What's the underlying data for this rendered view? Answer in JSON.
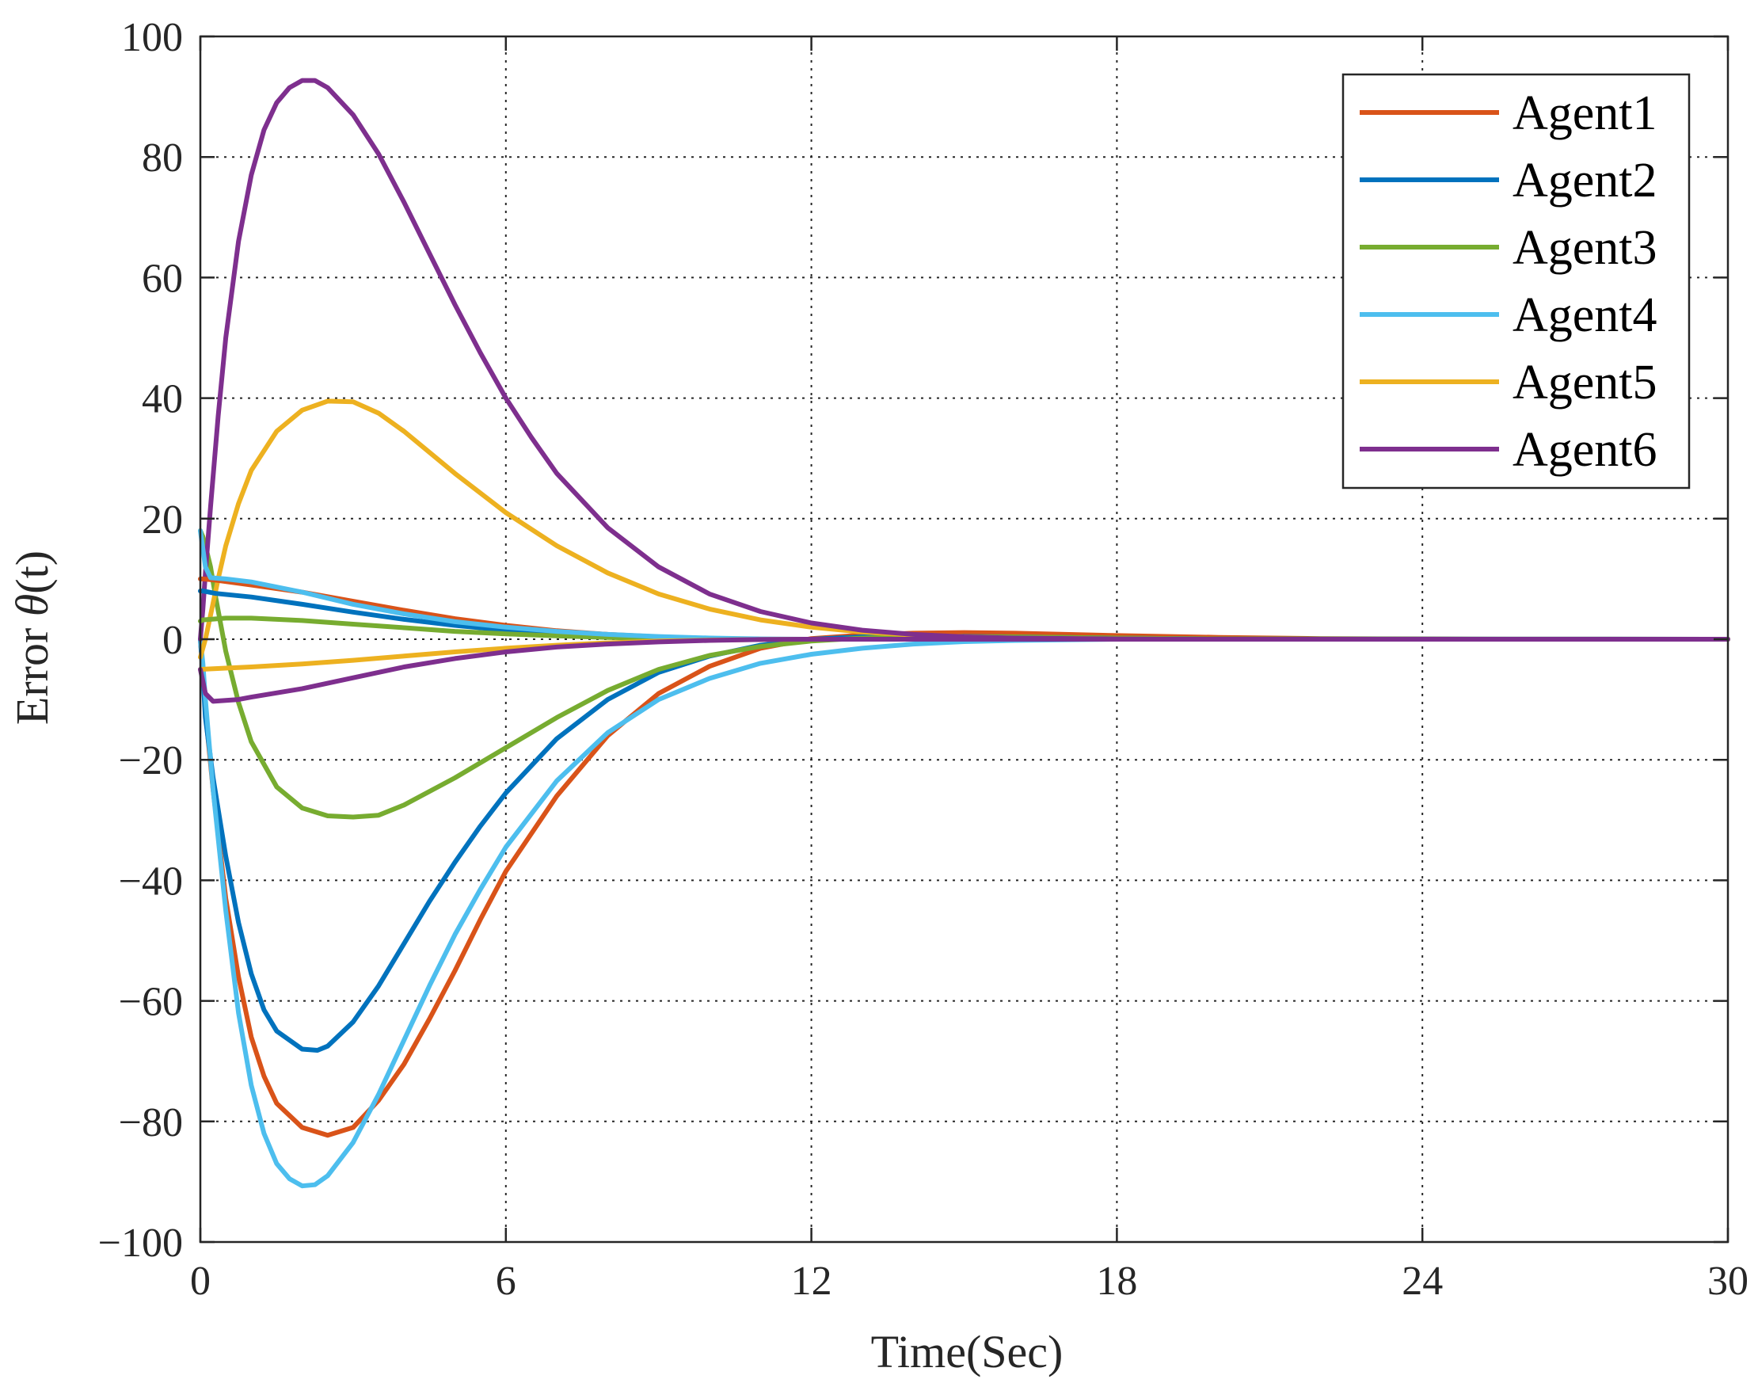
{
  "chart_data": {
    "type": "line",
    "title": "",
    "xlabel": "Time(Sec)",
    "ylabel_prefix": "Error ",
    "ylabel_symbol": "θ",
    "ylabel_suffix": "(t)",
    "xlim": [
      0,
      30
    ],
    "ylim": [
      -100,
      100
    ],
    "grid": true,
    "legend_position": "top-right",
    "xticks": [
      0,
      6,
      12,
      18,
      24,
      30
    ],
    "xtick_labels": [
      "0",
      "6",
      "12",
      "18",
      "24",
      "30"
    ],
    "yticks": [
      100,
      80,
      60,
      40,
      20,
      0,
      -20,
      -40,
      -60,
      -80,
      -100
    ],
    "ytick_labels": [
      "100",
      "80",
      "60",
      "40",
      "20",
      "0",
      "−20",
      "−40",
      "−60",
      "−80",
      "−100"
    ],
    "series": [
      {
        "name": "Agent1",
        "color": "#D95319",
        "points": [
          [
            0,
            0
          ],
          [
            0.05,
            -5
          ],
          [
            0.1,
            -12
          ],
          [
            0.25,
            -25
          ],
          [
            0.5,
            -43
          ],
          [
            0.75,
            -56
          ],
          [
            1.0,
            -66
          ],
          [
            1.25,
            -72.5
          ],
          [
            1.5,
            -77
          ],
          [
            2.0,
            -81
          ],
          [
            2.5,
            -82.3
          ],
          [
            3.0,
            -81
          ],
          [
            3.5,
            -76.5
          ],
          [
            4.0,
            -70.5
          ],
          [
            4.5,
            -63
          ],
          [
            5.0,
            -55
          ],
          [
            5.5,
            -46.5
          ],
          [
            6.0,
            -38.5
          ],
          [
            7.0,
            -26
          ],
          [
            8.0,
            -16
          ],
          [
            9.0,
            -9
          ],
          [
            10.0,
            -4.5
          ],
          [
            11.0,
            -1.5
          ],
          [
            12.0,
            0.1
          ],
          [
            13.0,
            0.7
          ],
          [
            14.0,
            1.0
          ],
          [
            15.0,
            1.1
          ],
          [
            16.0,
            1.0
          ],
          [
            18.0,
            0.6
          ],
          [
            20.0,
            0.3
          ],
          [
            22.0,
            0.1
          ],
          [
            25.0,
            0
          ],
          [
            30.0,
            0
          ]
        ]
      },
      {
        "name": "Agent2",
        "color": "#0072BD",
        "points": [
          [
            0,
            0
          ],
          [
            0.05,
            -6
          ],
          [
            0.1,
            -13
          ],
          [
            0.25,
            -23
          ],
          [
            0.5,
            -36
          ],
          [
            0.75,
            -47
          ],
          [
            1.0,
            -55.5
          ],
          [
            1.25,
            -61.5
          ],
          [
            1.5,
            -65
          ],
          [
            2.0,
            -68
          ],
          [
            2.3,
            -68.2
          ],
          [
            2.5,
            -67.5
          ],
          [
            3.0,
            -63.5
          ],
          [
            3.5,
            -57.5
          ],
          [
            4.0,
            -50.5
          ],
          [
            4.5,
            -43.5
          ],
          [
            5.0,
            -37
          ],
          [
            5.5,
            -31
          ],
          [
            6.0,
            -25.5
          ],
          [
            7.0,
            -16.5
          ],
          [
            8.0,
            -10
          ],
          [
            9.0,
            -5.5
          ],
          [
            10.0,
            -2.8
          ],
          [
            11.0,
            -1.0
          ],
          [
            12.0,
            0
          ],
          [
            13.0,
            0.4
          ],
          [
            14.0,
            0.5
          ],
          [
            16.0,
            0.4
          ],
          [
            18.0,
            0.2
          ],
          [
            20.0,
            0.05
          ],
          [
            30.0,
            0
          ]
        ]
      },
      {
        "name": "Agent3",
        "color": "#77AC30",
        "points": [
          [
            0,
            18
          ],
          [
            0.05,
            17
          ],
          [
            0.1,
            15.5
          ],
          [
            0.2,
            12
          ],
          [
            0.3,
            7
          ],
          [
            0.5,
            -2
          ],
          [
            0.75,
            -10.5
          ],
          [
            1.0,
            -17
          ],
          [
            1.5,
            -24.5
          ],
          [
            2.0,
            -28
          ],
          [
            2.5,
            -29.3
          ],
          [
            3.0,
            -29.5
          ],
          [
            3.5,
            -29.2
          ],
          [
            4.0,
            -27.5
          ],
          [
            5.0,
            -23
          ],
          [
            6.0,
            -18
          ],
          [
            7.0,
            -13
          ],
          [
            8.0,
            -8.5
          ],
          [
            9.0,
            -5
          ],
          [
            10.0,
            -2.7
          ],
          [
            11.0,
            -1.2
          ],
          [
            12.0,
            -0.3
          ],
          [
            13.0,
            0.2
          ],
          [
            14.0,
            0.4
          ],
          [
            16.0,
            0.4
          ],
          [
            18.0,
            0.2
          ],
          [
            20.0,
            0.05
          ],
          [
            30.0,
            0
          ]
        ]
      },
      {
        "name": "Agent4",
        "color": "#4DBEEE",
        "points": [
          [
            0,
            0
          ],
          [
            0.05,
            -4
          ],
          [
            0.1,
            -10
          ],
          [
            0.25,
            -25
          ],
          [
            0.5,
            -45
          ],
          [
            0.75,
            -62
          ],
          [
            1.0,
            -74
          ],
          [
            1.25,
            -82
          ],
          [
            1.5,
            -87
          ],
          [
            1.75,
            -89.5
          ],
          [
            2.0,
            -90.7
          ],
          [
            2.25,
            -90.5
          ],
          [
            2.5,
            -89
          ],
          [
            3.0,
            -83.5
          ],
          [
            3.5,
            -75.5
          ],
          [
            4.0,
            -66.5
          ],
          [
            4.5,
            -57.5
          ],
          [
            5.0,
            -49
          ],
          [
            5.5,
            -41.5
          ],
          [
            6.0,
            -34.5
          ],
          [
            7.0,
            -23.5
          ],
          [
            8.0,
            -15.5
          ],
          [
            9.0,
            -10
          ],
          [
            10.0,
            -6.5
          ],
          [
            11.0,
            -4
          ],
          [
            12.0,
            -2.5
          ],
          [
            13.0,
            -1.5
          ],
          [
            14.0,
            -0.8
          ],
          [
            15.0,
            -0.4
          ],
          [
            16.0,
            -0.2
          ],
          [
            18.0,
            0
          ],
          [
            30.0,
            0
          ]
        ]
      },
      {
        "name": "Agent5",
        "color": "#EDB120",
        "points": [
          [
            0,
            -3
          ],
          [
            0.1,
            0
          ],
          [
            0.2,
            4
          ],
          [
            0.35,
            10
          ],
          [
            0.5,
            15.5
          ],
          [
            0.75,
            22.5
          ],
          [
            1.0,
            28
          ],
          [
            1.5,
            34.5
          ],
          [
            2.0,
            38
          ],
          [
            2.5,
            39.5
          ],
          [
            3.0,
            39.4
          ],
          [
            3.5,
            37.5
          ],
          [
            4.0,
            34.5
          ],
          [
            4.5,
            31
          ],
          [
            5.0,
            27.5
          ],
          [
            6.0,
            21
          ],
          [
            7.0,
            15.5
          ],
          [
            8.0,
            11
          ],
          [
            9.0,
            7.5
          ],
          [
            10.0,
            5
          ],
          [
            11.0,
            3.2
          ],
          [
            12.0,
            2
          ],
          [
            13.0,
            1.2
          ],
          [
            14.0,
            0.7
          ],
          [
            15.0,
            0.4
          ],
          [
            16.0,
            0.2
          ],
          [
            18.0,
            0.05
          ],
          [
            20.0,
            0
          ],
          [
            30.0,
            0
          ]
        ]
      },
      {
        "name": "Agent6",
        "color": "#7E2F8E",
        "points": [
          [
            0,
            0
          ],
          [
            0.05,
            5
          ],
          [
            0.1,
            11
          ],
          [
            0.2,
            22
          ],
          [
            0.35,
            37
          ],
          [
            0.5,
            50
          ],
          [
            0.75,
            66
          ],
          [
            1.0,
            77
          ],
          [
            1.25,
            84.5
          ],
          [
            1.5,
            89
          ],
          [
            1.75,
            91.5
          ],
          [
            2.0,
            92.7
          ],
          [
            2.25,
            92.7
          ],
          [
            2.5,
            91.5
          ],
          [
            3.0,
            87
          ],
          [
            3.5,
            80.5
          ],
          [
            4.0,
            72.5
          ],
          [
            4.5,
            64
          ],
          [
            5.0,
            55.5
          ],
          [
            5.5,
            47.5
          ],
          [
            6.0,
            40
          ],
          [
            6.5,
            33.5
          ],
          [
            7.0,
            27.5
          ],
          [
            8.0,
            18.5
          ],
          [
            9.0,
            12
          ],
          [
            10.0,
            7.5
          ],
          [
            11.0,
            4.6
          ],
          [
            12.0,
            2.7
          ],
          [
            13.0,
            1.5
          ],
          [
            14.0,
            0.8
          ],
          [
            15.0,
            0.4
          ],
          [
            16.0,
            0.2
          ],
          [
            18.0,
            0.05
          ],
          [
            20.0,
            0
          ],
          [
            30.0,
            0
          ]
        ]
      },
      {
        "name": "Agent1-tail",
        "color": "#D95319",
        "legend": false,
        "points": [
          [
            0,
            10
          ],
          [
            0.05,
            10
          ],
          [
            0.3,
            9.8
          ],
          [
            1.0,
            9
          ],
          [
            2.0,
            7.8
          ],
          [
            3.0,
            6.3
          ],
          [
            4.0,
            4.8
          ],
          [
            5.0,
            3.4
          ],
          [
            6.0,
            2.3
          ],
          [
            7.0,
            1.4
          ],
          [
            8.0,
            0.8
          ],
          [
            9.0,
            0.4
          ],
          [
            10.0,
            0.15
          ],
          [
            11.0,
            0
          ],
          [
            30.0,
            0
          ]
        ]
      },
      {
        "name": "Agent2-tail",
        "color": "#0072BD",
        "legend": false,
        "points": [
          [
            0,
            8
          ],
          [
            0.05,
            8
          ],
          [
            0.3,
            7.6
          ],
          [
            1.0,
            7
          ],
          [
            2.0,
            5.8
          ],
          [
            3.0,
            4.5
          ],
          [
            4.0,
            3.3
          ],
          [
            5.0,
            2.3
          ],
          [
            6.0,
            1.5
          ],
          [
            7.0,
            0.9
          ],
          [
            8.0,
            0.5
          ],
          [
            9.0,
            0.25
          ],
          [
            10.0,
            0.1
          ],
          [
            11.0,
            0
          ],
          [
            30.0,
            0
          ]
        ]
      },
      {
        "name": "Agent3-tail",
        "color": "#77AC30",
        "legend": false,
        "points": [
          [
            0,
            3
          ],
          [
            0.05,
            3.2
          ],
          [
            0.5,
            3.5
          ],
          [
            1.0,
            3.5
          ],
          [
            2.0,
            3.1
          ],
          [
            3.0,
            2.5
          ],
          [
            4.0,
            1.9
          ],
          [
            5.0,
            1.3
          ],
          [
            6.0,
            0.9
          ],
          [
            7.0,
            0.55
          ],
          [
            8.0,
            0.3
          ],
          [
            9.0,
            0.15
          ],
          [
            10.0,
            0.05
          ],
          [
            11.0,
            0
          ],
          [
            30.0,
            0
          ]
        ]
      },
      {
        "name": "Agent4-tail",
        "color": "#4DBEEE",
        "legend": false,
        "points": [
          [
            0,
            18
          ],
          [
            0.05,
            15
          ],
          [
            0.1,
            12
          ],
          [
            0.2,
            10.2
          ],
          [
            0.5,
            10
          ],
          [
            1.0,
            9.5
          ],
          [
            2.0,
            7.8
          ],
          [
            3.0,
            5.8
          ],
          [
            4.0,
            4.2
          ],
          [
            5.0,
            2.9
          ],
          [
            6.0,
            2
          ],
          [
            7.0,
            1.3
          ],
          [
            8.0,
            0.8
          ],
          [
            9.0,
            0.45
          ],
          [
            10.0,
            0.2
          ],
          [
            11.0,
            0.05
          ],
          [
            12.0,
            0
          ],
          [
            30.0,
            0
          ]
        ]
      },
      {
        "name": "Agent5-tail",
        "color": "#EDB120",
        "legend": false,
        "points": [
          [
            0,
            -5
          ],
          [
            0.5,
            -4.8
          ],
          [
            1.0,
            -4.6
          ],
          [
            2.0,
            -4.1
          ],
          [
            3.0,
            -3.5
          ],
          [
            4.0,
            -2.8
          ],
          [
            5.0,
            -2.1
          ],
          [
            6.0,
            -1.5
          ],
          [
            7.0,
            -1.0
          ],
          [
            8.0,
            -0.6
          ],
          [
            9.0,
            -0.3
          ],
          [
            10.0,
            -0.15
          ],
          [
            11.0,
            -0.05
          ],
          [
            12.0,
            0
          ],
          [
            30.0,
            0
          ]
        ]
      },
      {
        "name": "Agent6-tail",
        "color": "#7E2F8E",
        "legend": false,
        "points": [
          [
            0,
            -5
          ],
          [
            0.1,
            -9
          ],
          [
            0.25,
            -10.3
          ],
          [
            0.75,
            -10
          ],
          [
            1.0,
            -9.6
          ],
          [
            2.0,
            -8.2
          ],
          [
            3.0,
            -6.4
          ],
          [
            4.0,
            -4.6
          ],
          [
            5.0,
            -3.2
          ],
          [
            6.0,
            -2.1
          ],
          [
            7.0,
            -1.3
          ],
          [
            8.0,
            -0.8
          ],
          [
            9.0,
            -0.45
          ],
          [
            10.0,
            -0.2
          ],
          [
            11.0,
            -0.05
          ],
          [
            12.0,
            0
          ],
          [
            30.0,
            0
          ]
        ]
      }
    ],
    "legend": [
      "Agent1",
      "Agent2",
      "Agent3",
      "Agent4",
      "Agent5",
      "Agent6"
    ]
  }
}
